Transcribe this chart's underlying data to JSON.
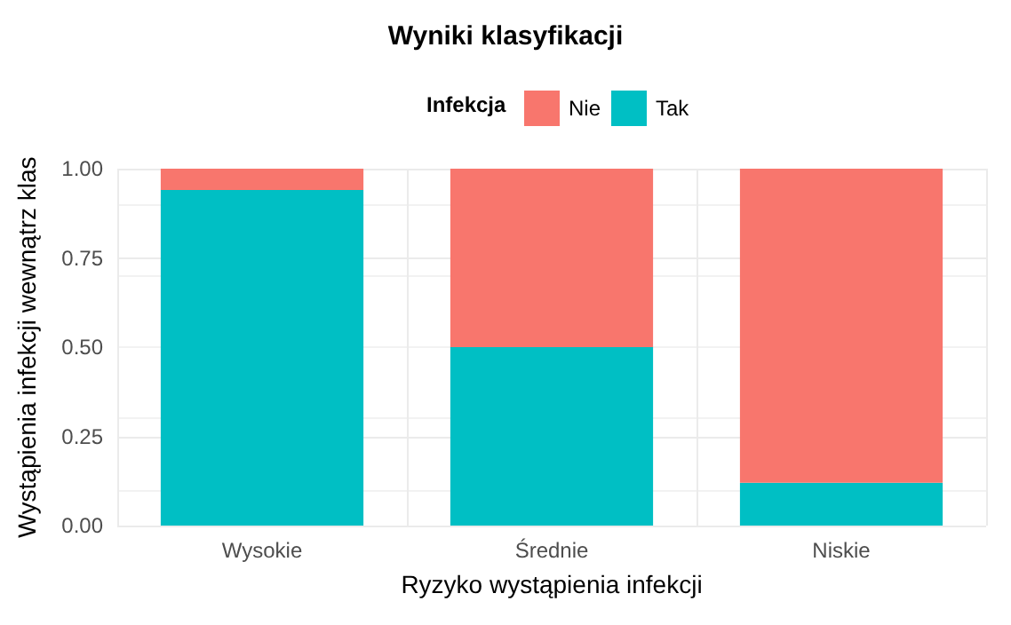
{
  "chart_data": {
    "type": "bar",
    "title": "Wyniki klasyfikacji",
    "xlabel": "Ryzyko wystąpienia infekcji",
    "ylabel": "Wystąpienia infekcji wewnątrz klas",
    "legend_title": "Infekcja",
    "categories": [
      "Wysokie",
      "Średnie",
      "Niskie"
    ],
    "series": [
      {
        "name": "Tak",
        "color": "#00bfc4",
        "values": [
          0.94,
          0.5,
          0.12
        ]
      },
      {
        "name": "Nie",
        "color": "#f8766d",
        "values": [
          0.06,
          0.5,
          0.88
        ]
      }
    ],
    "stacked": true,
    "ylim": [
      0,
      1
    ],
    "yticks": [
      {
        "value": 0,
        "label": "0.00"
      },
      {
        "value": 0.25,
        "label": "0.25"
      },
      {
        "value": 0.5,
        "label": "0.50"
      },
      {
        "value": 0.75,
        "label": "0.75"
      },
      {
        "value": 1,
        "label": "1.00"
      }
    ],
    "grid": true,
    "legend": "top"
  }
}
